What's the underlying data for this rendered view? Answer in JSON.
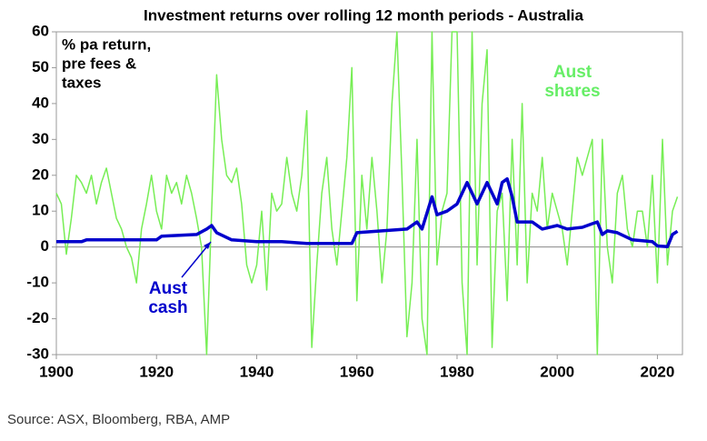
{
  "chart_data": {
    "type": "line",
    "title": "Investment returns over rolling 12 month periods - Australia",
    "annotations": [
      {
        "lines": [
          "% pa return,",
          "pre fees &",
          "taxes"
        ],
        "color": "#000000"
      },
      {
        "lines": [
          "Aust",
          "shares"
        ],
        "color": "#66ee66"
      },
      {
        "lines": [
          "Aust",
          "cash"
        ],
        "color": "#0000cc"
      }
    ],
    "source": "Source: ASX, Bloomberg, RBA, AMP",
    "xlim": [
      1900,
      2025
    ],
    "xticks": [
      1900,
      1920,
      1940,
      1960,
      1980,
      2000,
      2020
    ],
    "ylim": [
      -30,
      60
    ],
    "yticks": [
      -30,
      -20,
      -10,
      0,
      10,
      20,
      30,
      40,
      50,
      60
    ],
    "series": [
      {
        "name": "Aust shares",
        "color": "#77ee55",
        "x": [
          1900,
          1901,
          1902,
          1903,
          1904,
          1905,
          1906,
          1907,
          1908,
          1909,
          1910,
          1911,
          1912,
          1913,
          1914,
          1915,
          1916,
          1917,
          1918,
          1919,
          1920,
          1921,
          1922,
          1923,
          1924,
          1925,
          1926,
          1927,
          1928,
          1929,
          1930,
          1931,
          1932,
          1933,
          1934,
          1935,
          1936,
          1937,
          1938,
          1939,
          1940,
          1941,
          1942,
          1943,
          1944,
          1945,
          1946,
          1947,
          1948,
          1949,
          1950,
          1951,
          1952,
          1953,
          1954,
          1955,
          1956,
          1957,
          1958,
          1959,
          1960,
          1961,
          1962,
          1963,
          1964,
          1965,
          1966,
          1967,
          1968,
          1969,
          1970,
          1971,
          1972,
          1973,
          1974,
          1975,
          1976,
          1977,
          1978,
          1979,
          1980,
          1981,
          1982,
          1983,
          1984,
          1985,
          1986,
          1987,
          1988,
          1989,
          1990,
          1991,
          1992,
          1993,
          1994,
          1995,
          1996,
          1997,
          1998,
          1999,
          2000,
          2001,
          2002,
          2003,
          2004,
          2005,
          2006,
          2007,
          2008,
          2009,
          2010,
          2011,
          2012,
          2013,
          2014,
          2015,
          2016,
          2017,
          2018,
          2019,
          2020,
          2021,
          2022,
          2023,
          2024
        ],
        "values": [
          15,
          12,
          -2,
          8,
          20,
          18,
          15,
          20,
          12,
          18,
          22,
          15,
          8,
          5,
          0,
          -3,
          -10,
          5,
          12,
          20,
          10,
          5,
          20,
          15,
          18,
          12,
          20,
          15,
          8,
          0,
          -30,
          10,
          48,
          30,
          20,
          18,
          22,
          12,
          -5,
          -10,
          -5,
          10,
          -12,
          15,
          10,
          12,
          25,
          15,
          10,
          20,
          38,
          -28,
          -5,
          15,
          25,
          5,
          -5,
          10,
          25,
          50,
          -15,
          20,
          5,
          25,
          10,
          -10,
          5,
          40,
          60,
          20,
          -25,
          -10,
          30,
          -20,
          -30,
          60,
          -5,
          10,
          15,
          60,
          60,
          -10,
          -30,
          60,
          -5,
          40,
          55,
          -28,
          10,
          15,
          -15,
          30,
          -5,
          40,
          -10,
          15,
          10,
          25,
          5,
          15,
          10,
          5,
          -5,
          10,
          25,
          20,
          25,
          30,
          -30,
          30,
          0,
          -10,
          15,
          20,
          5,
          0,
          10,
          10,
          0,
          20,
          -10,
          30,
          -5,
          10,
          14
        ]
      },
      {
        "name": "Aust cash",
        "color": "#0000cc",
        "x": [
          1900,
          1905,
          1906,
          1920,
          1921,
          1928,
          1930,
          1931,
          1932,
          1935,
          1940,
          1945,
          1950,
          1959,
          1960,
          1965,
          1970,
          1972,
          1973,
          1975,
          1976,
          1978,
          1980,
          1982,
          1984,
          1986,
          1988,
          1989,
          1990,
          1991,
          1992,
          1995,
          1997,
          2000,
          2002,
          2005,
          2007,
          2008,
          2009,
          2010,
          2012,
          2015,
          2019,
          2020,
          2022,
          2023,
          2024
        ],
        "values": [
          1.5,
          1.5,
          2,
          2,
          3,
          3.5,
          5,
          6,
          4,
          2,
          1.5,
          1.5,
          1,
          1,
          4,
          4.5,
          5,
          7,
          5,
          14,
          9,
          10,
          12,
          18,
          12,
          18,
          12,
          18,
          19,
          14,
          7,
          7,
          5,
          6,
          5,
          5.5,
          6.5,
          7,
          3.5,
          4.5,
          4,
          2,
          1.5,
          0.3,
          0.1,
          3.5,
          4.4
        ]
      }
    ]
  }
}
